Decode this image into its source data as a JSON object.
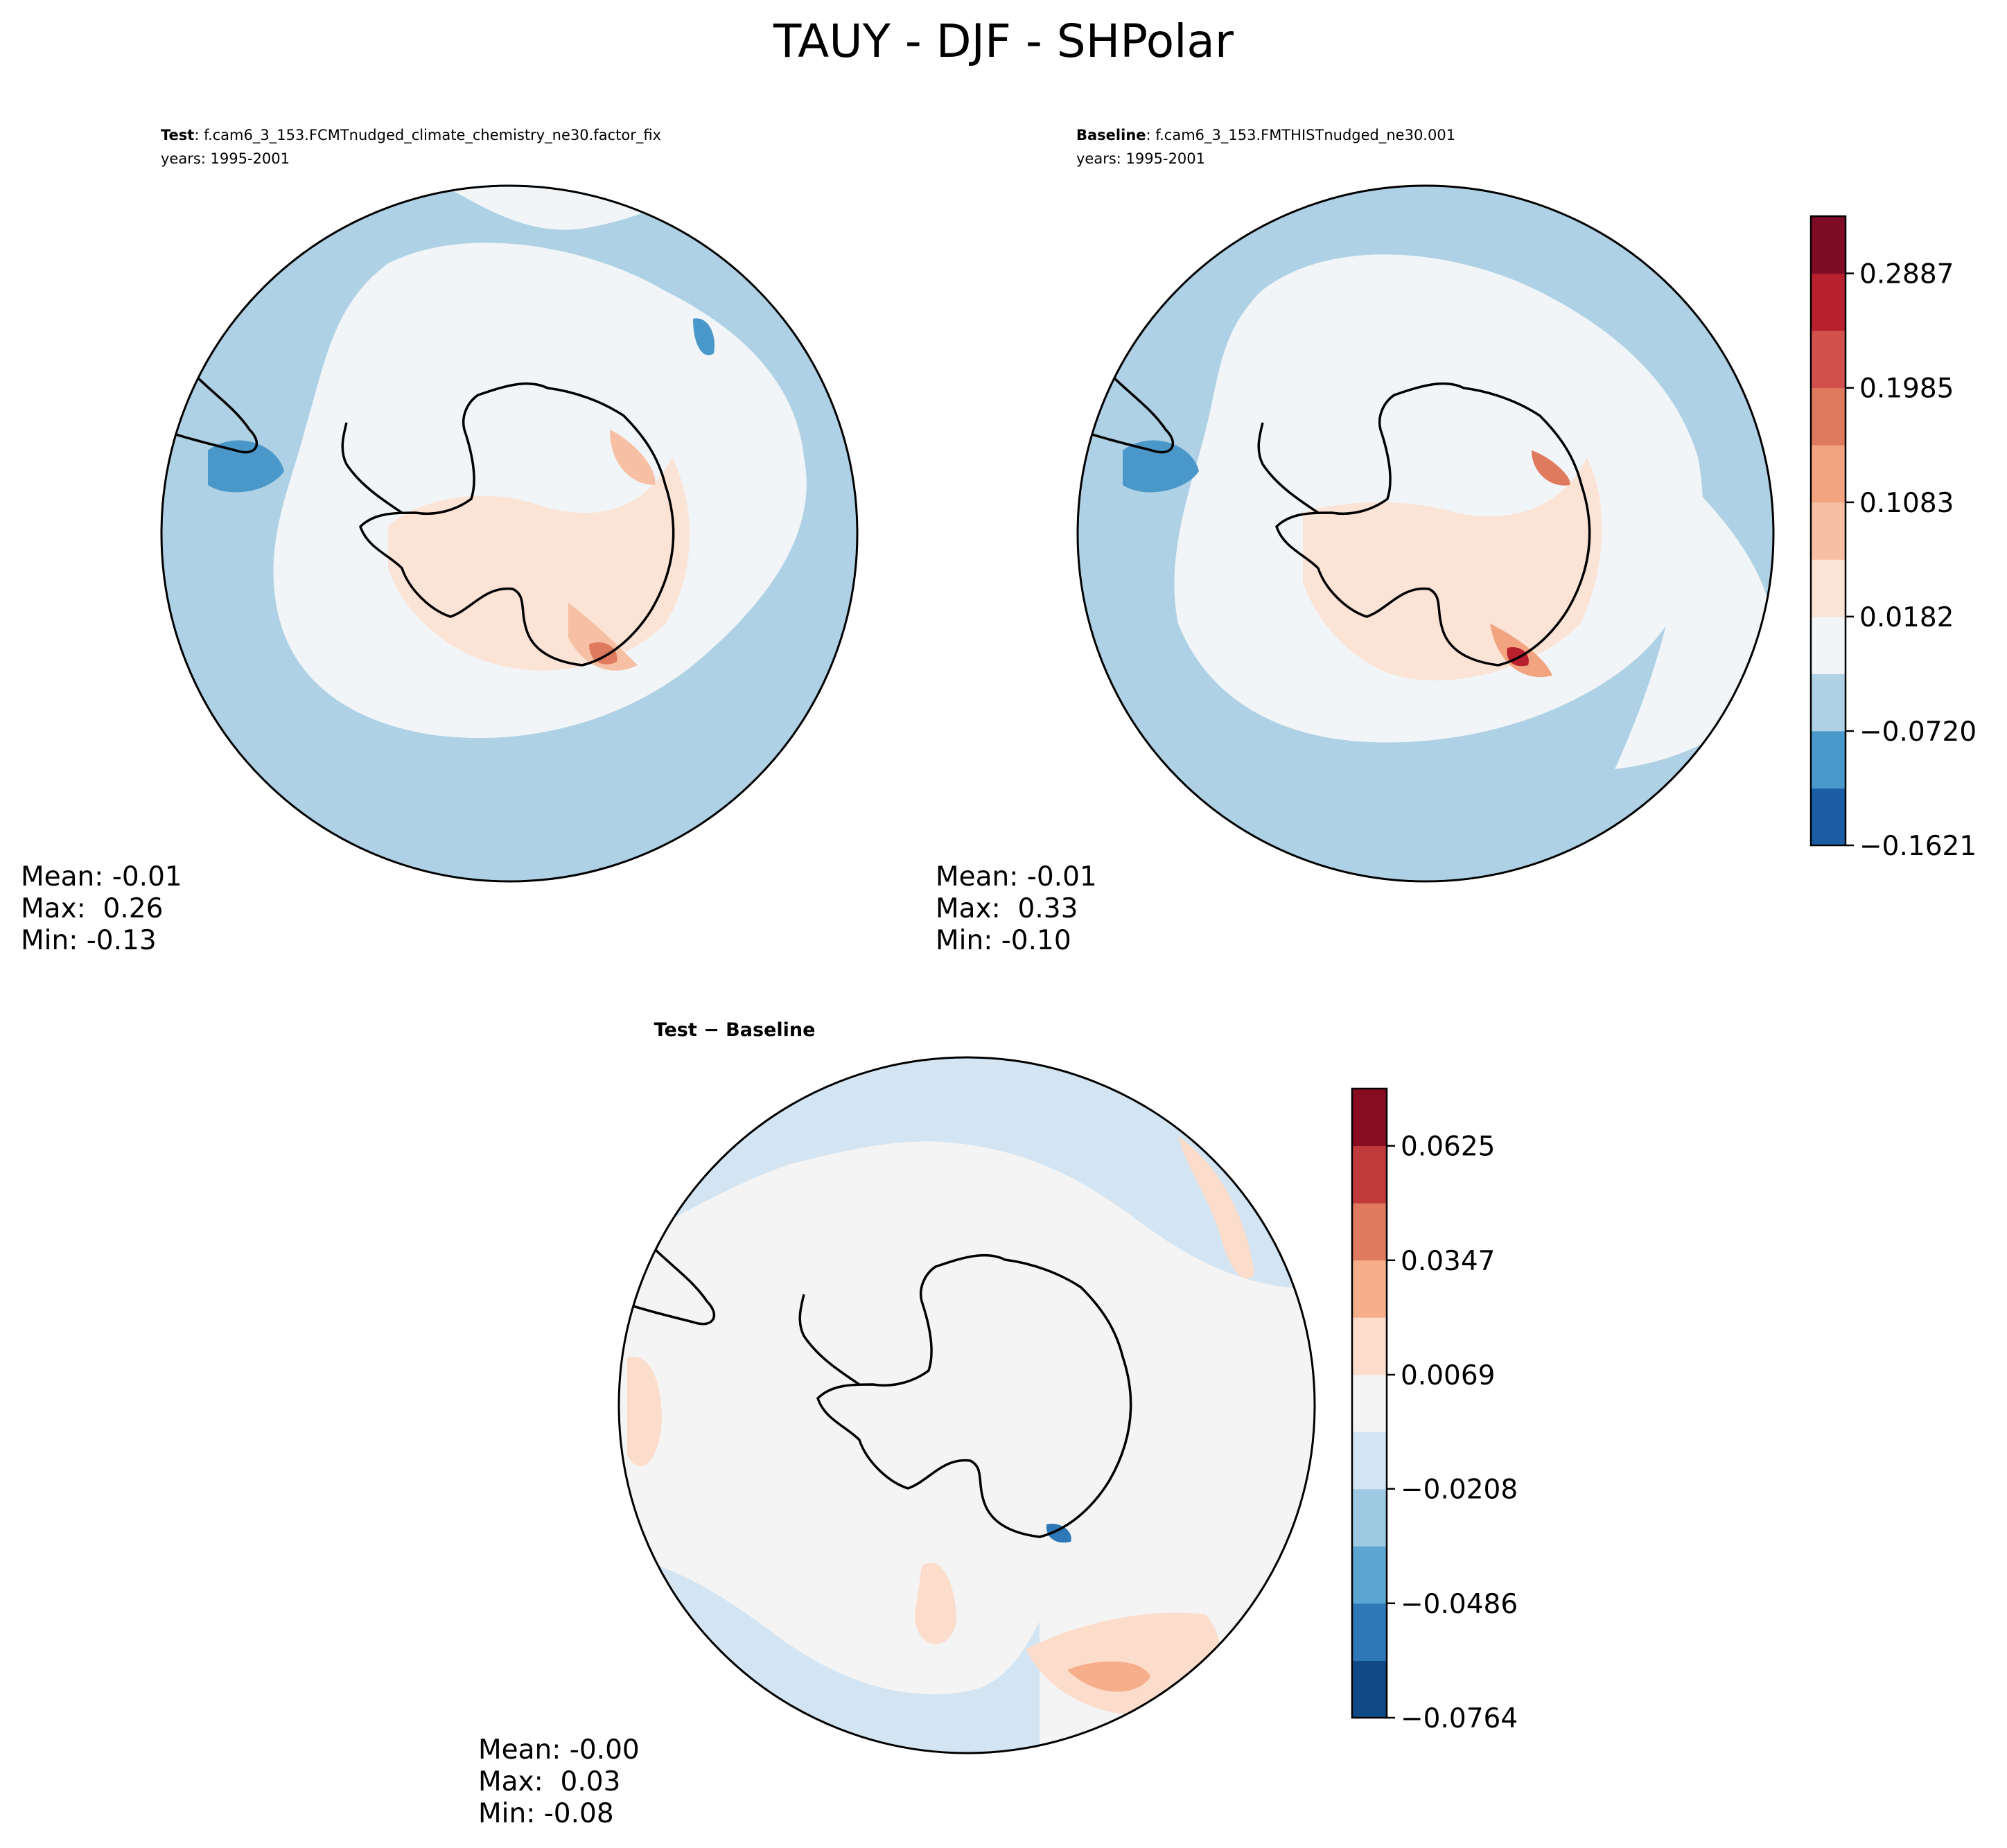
{
  "figure": {
    "title": "TAUY - DJF - SHPolar"
  },
  "panels": {
    "test": {
      "label_bold": "Test",
      "label_rest": ": f.cam6_3_153.FCMTnudged_climate_chemistry_ne30.factor_fix",
      "years": "years: 1995-2001",
      "stats": {
        "mean": "Mean: -0.01",
        "max": "Max:  0.26",
        "min": "Min: -0.13"
      }
    },
    "baseline": {
      "label_bold": "Baseline",
      "label_rest": ": f.cam6_3_153.FMTHISTnudged_ne30.001",
      "years": "years: 1995-2001",
      "stats": {
        "mean": "Mean: -0.01",
        "max": "Max:  0.33",
        "min": "Min: -0.10"
      }
    },
    "diff": {
      "label": "Test − Baseline",
      "stats": {
        "mean": "Mean: -0.00",
        "max": "Max:  0.03",
        "min": "Min: -0.08"
      }
    }
  },
  "colorbars": {
    "main": {
      "colors": [
        "#1a5da5",
        "#4a98c9",
        "#aed1e5",
        "#f2f5f7",
        "#fbe3d6",
        "#f7c0a4",
        "#f2a380",
        "#e07a5f",
        "#d2514c",
        "#b8202e",
        "#7f0c25"
      ],
      "tick_labels": [
        "−0.1621",
        "−0.0720",
        "0.0182",
        "0.1083",
        "0.1985",
        "0.2887"
      ],
      "tick_values": [
        -0.1621,
        -0.072,
        0.0182,
        0.1083,
        0.1985,
        0.2887
      ],
      "range": [
        -0.1621,
        0.3338
      ]
    },
    "diff": {
      "colors": [
        "#0f4a87",
        "#2e78b7",
        "#5aa5d1",
        "#9ec9e2",
        "#d3e5f2",
        "#f4f4f4",
        "#fcdcca",
        "#f6ae8b",
        "#e07a5f",
        "#c03a3c",
        "#870c22"
      ],
      "tick_labels": [
        "−0.0764",
        "−0.0486",
        "−0.0208",
        "0.0069",
        "0.0347",
        "0.0625"
      ],
      "tick_values": [
        -0.0764,
        -0.0486,
        -0.0208,
        0.0069,
        0.0347,
        0.0625
      ],
      "range": [
        -0.0764,
        0.0764
      ]
    }
  },
  "chart_data": [
    {
      "type": "heatmap",
      "title": "Test : f.cam6_3_153.FCMTnudged_climate_chemistry_ne30.factor_fix",
      "subtitle": "years: 1995-2001",
      "projection": "south polar stereographic",
      "mean": -0.01,
      "max": 0.26,
      "min": -0.13,
      "color_range": [
        -0.1621,
        0.3338
      ]
    },
    {
      "type": "heatmap",
      "title": "Baseline : f.cam6_3_153.FMTHISTnudged_ne30.001",
      "subtitle": "years: 1995-2001",
      "projection": "south polar stereographic",
      "mean": -0.01,
      "max": 0.33,
      "min": -0.1,
      "color_range": [
        -0.1621,
        0.3338
      ]
    },
    {
      "type": "heatmap",
      "title": "Test − Baseline",
      "projection": "south polar stereographic",
      "mean": -0.0,
      "max": 0.03,
      "min": -0.08,
      "color_range": [
        -0.0764,
        0.0764
      ]
    }
  ]
}
